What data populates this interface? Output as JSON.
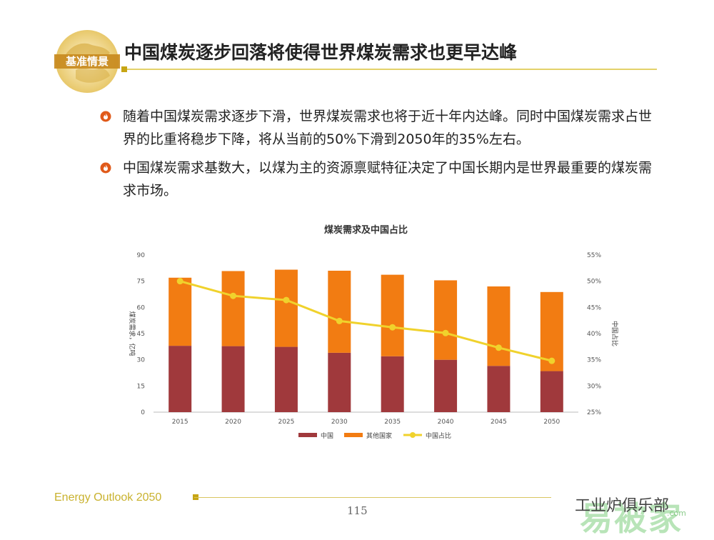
{
  "header": {
    "badge_text": "基准情景",
    "title": "中国煤炭逐步回落将使得世界煤炭需求也更早达峰"
  },
  "bullets": [
    {
      "text": "随着中国煤炭需求逐步下滑，世界煤炭需求也将于近十年内达峰。同时中国煤炭需求占世界的比重将稳步下降，将从当前的50%下滑到2050年的35%左右。"
    },
    {
      "text": "中国煤炭需求基数大，以煤为主的资源禀赋特征决定了中国长期内是世界最重要的煤炭需求市场。"
    }
  ],
  "chart_data": {
    "type": "bar",
    "stacked": true,
    "title": "煤炭需求及中国占比",
    "ylabel": "煤炭需求，亿吨",
    "y2label": "中国占比",
    "categories": [
      "2015",
      "2020",
      "2025",
      "2030",
      "2035",
      "2040",
      "2045",
      "2050"
    ],
    "ylim": [
      0,
      90
    ],
    "yticks": [
      "0",
      "15",
      "30",
      "45",
      "60",
      "75",
      "90"
    ],
    "y2lim": [
      25,
      55
    ],
    "y2ticks": [
      "25%",
      "30%",
      "35%",
      "40%",
      "45%",
      "50%",
      "55%"
    ],
    "series": [
      {
        "name": "中国",
        "kind": "bar",
        "color": "#a0393c",
        "values": [
          38,
          37.8,
          37.4,
          34,
          32,
          30,
          26.5,
          23.5
        ]
      },
      {
        "name": "其他国家",
        "kind": "bar",
        "color": "#f27c12",
        "values": [
          39,
          43,
          44.2,
          47,
          46.7,
          45.5,
          45.5,
          45.3
        ]
      },
      {
        "name": "中国占比",
        "kind": "line",
        "axis": "right",
        "color": "#f0d22c",
        "values": [
          50,
          47.2,
          46.4,
          42.4,
          41.2,
          40.1,
          37.3,
          34.8
        ]
      }
    ],
    "legend_position": "bottom",
    "grid": false
  },
  "footer": {
    "report_name": "Energy Outlook 2050",
    "page_number": "115"
  },
  "watermark": {
    "wechat_text": "工业炉俱乐部",
    "site_text": "易被家",
    "site_url": ".com"
  }
}
